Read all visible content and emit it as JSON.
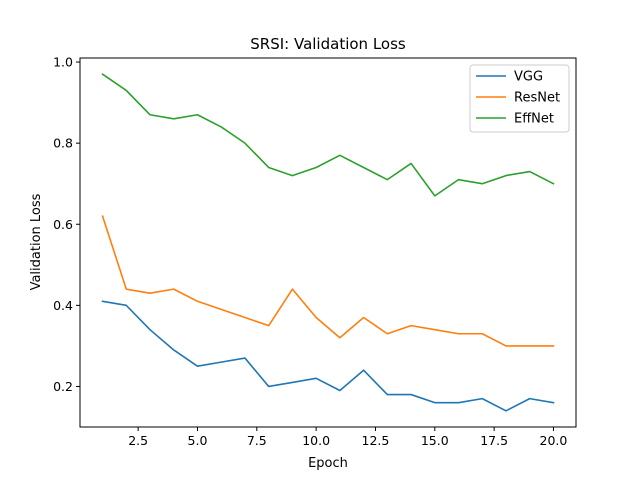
{
  "chart_data": {
    "type": "line",
    "title": "SRSI: Validation Loss",
    "xlabel": "Epoch",
    "ylabel": "Validation Loss",
    "x": [
      1,
      2,
      3,
      4,
      5,
      6,
      7,
      8,
      9,
      10,
      11,
      12,
      13,
      14,
      15,
      16,
      17,
      18,
      19,
      20
    ],
    "xlim": [
      0.05,
      20.95
    ],
    "ylim": [
      0.1,
      1.01
    ],
    "xticks": [
      2.5,
      5.0,
      7.5,
      10.0,
      12.5,
      15.0,
      17.5,
      20.0
    ],
    "xtick_labels": [
      "2.5",
      "5.0",
      "7.5",
      "10.0",
      "12.5",
      "15.0",
      "17.5",
      "20.0"
    ],
    "yticks": [
      0.2,
      0.4,
      0.6,
      0.8,
      1.0
    ],
    "ytick_labels": [
      "0.2",
      "0.4",
      "0.6",
      "0.8",
      "1.0"
    ],
    "grid": false,
    "legend_position": "top-right",
    "series": [
      {
        "name": "VGG",
        "color": "#1f77b4",
        "values": [
          0.41,
          0.4,
          0.34,
          0.29,
          0.25,
          0.26,
          0.27,
          0.2,
          0.21,
          0.22,
          0.19,
          0.24,
          0.18,
          0.18,
          0.16,
          0.16,
          0.17,
          0.14,
          0.17,
          0.16
        ]
      },
      {
        "name": "ResNet",
        "color": "#ff7f0e",
        "values": [
          0.62,
          0.44,
          0.43,
          0.44,
          0.41,
          0.39,
          0.37,
          0.35,
          0.44,
          0.37,
          0.32,
          0.37,
          0.33,
          0.35,
          0.34,
          0.33,
          0.33,
          0.3,
          0.3,
          0.3
        ]
      },
      {
        "name": "EffNet",
        "color": "#2ca02c",
        "values": [
          0.97,
          0.93,
          0.87,
          0.86,
          0.87,
          0.84,
          0.8,
          0.74,
          0.72,
          0.74,
          0.77,
          0.74,
          0.71,
          0.75,
          0.67,
          0.71,
          0.7,
          0.72,
          0.73,
          0.7
        ]
      }
    ]
  }
}
